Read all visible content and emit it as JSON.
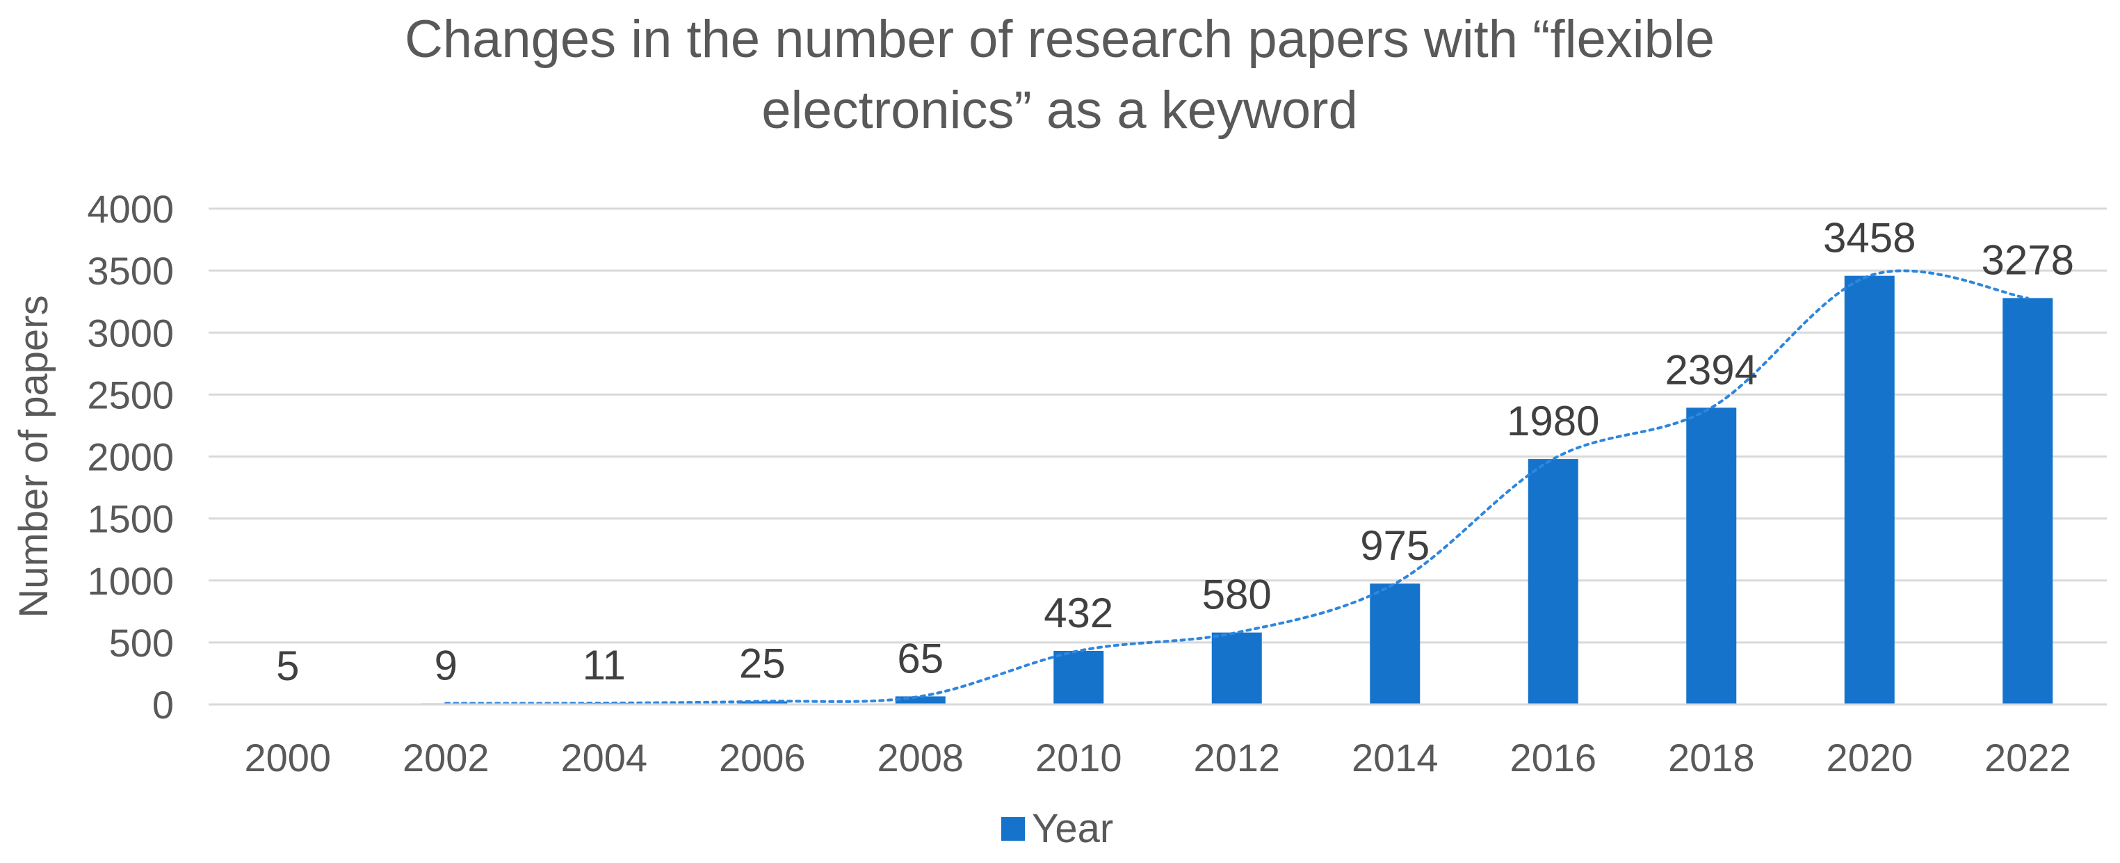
{
  "chart_data": {
    "type": "bar",
    "title": "Changes in the number of research papers with “flexible electronics” as a keyword",
    "title_lines": [
      "Changes in the number of research papers with “flexible",
      "electronics” as a keyword"
    ],
    "xlabel": "",
    "ylabel": "Number of papers",
    "categories": [
      "2000",
      "2002",
      "2004",
      "2006",
      "2008",
      "2010",
      "2012",
      "2014",
      "2016",
      "2018",
      "2020",
      "2022"
    ],
    "series": [
      {
        "name": "Year",
        "values": [
          5,
          9,
          11,
          25,
          65,
          432,
          580,
          975,
          1980,
          2394,
          3458,
          3278
        ],
        "color": "#1573CC"
      }
    ],
    "ylim": [
      0,
      4000
    ],
    "yticks": [
      "0",
      "500",
      "1000",
      "1500",
      "2000",
      "2500",
      "3000",
      "3500",
      "4000"
    ],
    "data_labels": [
      "5",
      "9",
      "11",
      "25",
      "65",
      "432",
      "580",
      "975",
      "1980",
      "2394",
      "3458",
      "3278"
    ],
    "trendline": {
      "style": "dotted",
      "color": "#2E86DE",
      "from_category": "2002",
      "to_category": "2022"
    },
    "grid": true,
    "legend": {
      "position": "bottom",
      "label": "Year"
    },
    "colors": {
      "bar": "#1573CC",
      "trend": "#2E86DE",
      "gridline": "#D9D9D9",
      "text": "#595959"
    }
  }
}
